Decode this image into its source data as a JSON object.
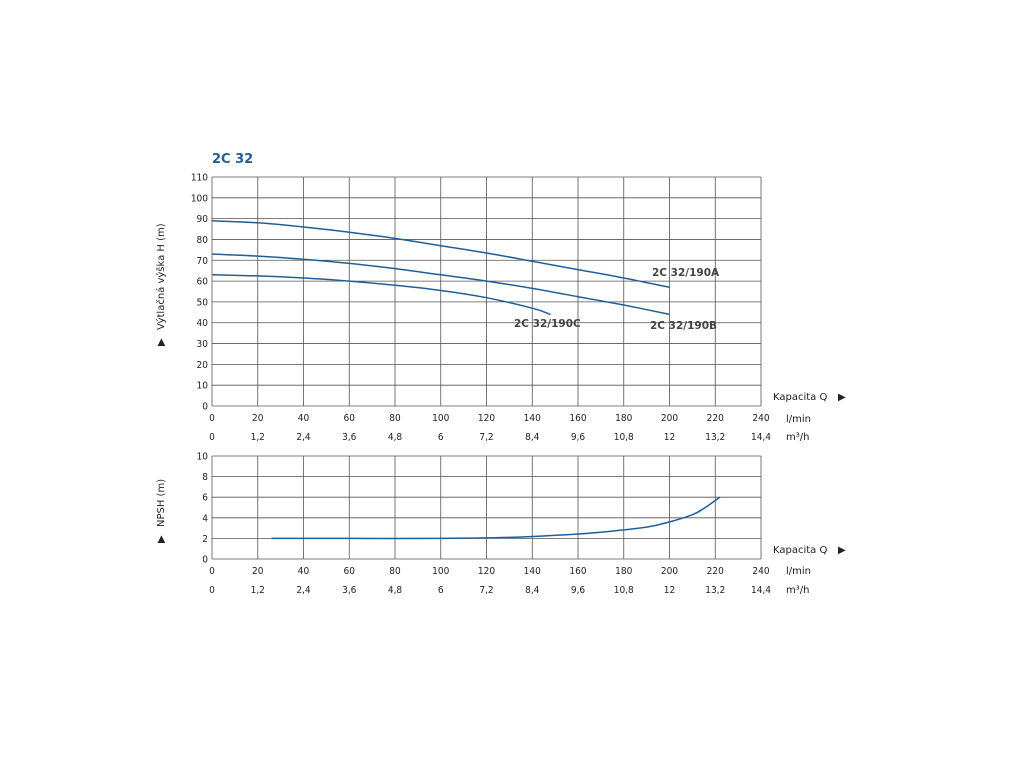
{
  "chart_data": [
    {
      "type": "line",
      "title": "2C 32",
      "ylabel": "Výtlačná výška H (m)",
      "xlabel": "Kapacita Q",
      "x_unit": "l/min",
      "x2_unit": "m³/h",
      "xlim": [
        0,
        240
      ],
      "ylim": [
        0,
        110
      ],
      "x_ticks": [
        "0",
        "20",
        "40",
        "60",
        "80",
        "100",
        "120",
        "140",
        "160",
        "180",
        "200",
        "220",
        "240"
      ],
      "x2_ticks": [
        "0",
        "1,2",
        "2,4",
        "3,6",
        "4,8",
        "6",
        "7,2",
        "8,4",
        "9,6",
        "10,8",
        "12",
        "13,2",
        "14,4"
      ],
      "y_ticks": [
        "0",
        "10",
        "20",
        "30",
        "40",
        "50",
        "60",
        "70",
        "80",
        "90",
        "100",
        "110"
      ],
      "grid": true,
      "title_color": "#1f5f97",
      "line_color": "#1f5f97",
      "series": [
        {
          "name": "2C 32/190A",
          "x": [
            0,
            20,
            40,
            60,
            80,
            100,
            120,
            140,
            160,
            180,
            200
          ],
          "y": [
            89,
            88,
            86,
            83.5,
            80.5,
            77,
            73.5,
            69.5,
            65.5,
            61.5,
            57
          ]
        },
        {
          "name": "2C 32/190B",
          "x": [
            0,
            20,
            40,
            60,
            80,
            100,
            120,
            140,
            160,
            180,
            200
          ],
          "y": [
            73,
            72,
            70.5,
            68.5,
            66,
            63,
            60,
            56.5,
            52.5,
            48.5,
            44
          ]
        },
        {
          "name": "2C 32/190C",
          "x": [
            0,
            20,
            40,
            60,
            80,
            100,
            120,
            140,
            148
          ],
          "y": [
            63,
            62.5,
            61.5,
            60,
            58,
            55.5,
            52,
            47,
            44
          ]
        }
      ]
    },
    {
      "type": "line",
      "title": "",
      "ylabel": "NPSH (m)",
      "xlabel": "Kapacita Q",
      "x_unit": "l/min",
      "x2_unit": "m³/h",
      "xlim": [
        0,
        240
      ],
      "ylim": [
        0,
        10
      ],
      "x_ticks": [
        "0",
        "20",
        "40",
        "60",
        "80",
        "100",
        "120",
        "140",
        "160",
        "180",
        "200",
        "220",
        "240"
      ],
      "x2_ticks": [
        "0",
        "1,2",
        "2,4",
        "3,6",
        "4,8",
        "6",
        "7,2",
        "8,4",
        "9,6",
        "10,8",
        "12",
        "13,2",
        "14,4"
      ],
      "y_ticks": [
        "0",
        "2",
        "4",
        "6",
        "8",
        "10"
      ],
      "grid": true,
      "line_color": "#1f5f97",
      "series": [
        {
          "name": "",
          "x": [
            26,
            60,
            100,
            130,
            150,
            170,
            190,
            200,
            210,
            215,
            222
          ],
          "y": [
            2,
            2,
            2,
            2.1,
            2.3,
            2.6,
            3.1,
            3.6,
            4.3,
            4.9,
            6
          ]
        }
      ]
    }
  ]
}
